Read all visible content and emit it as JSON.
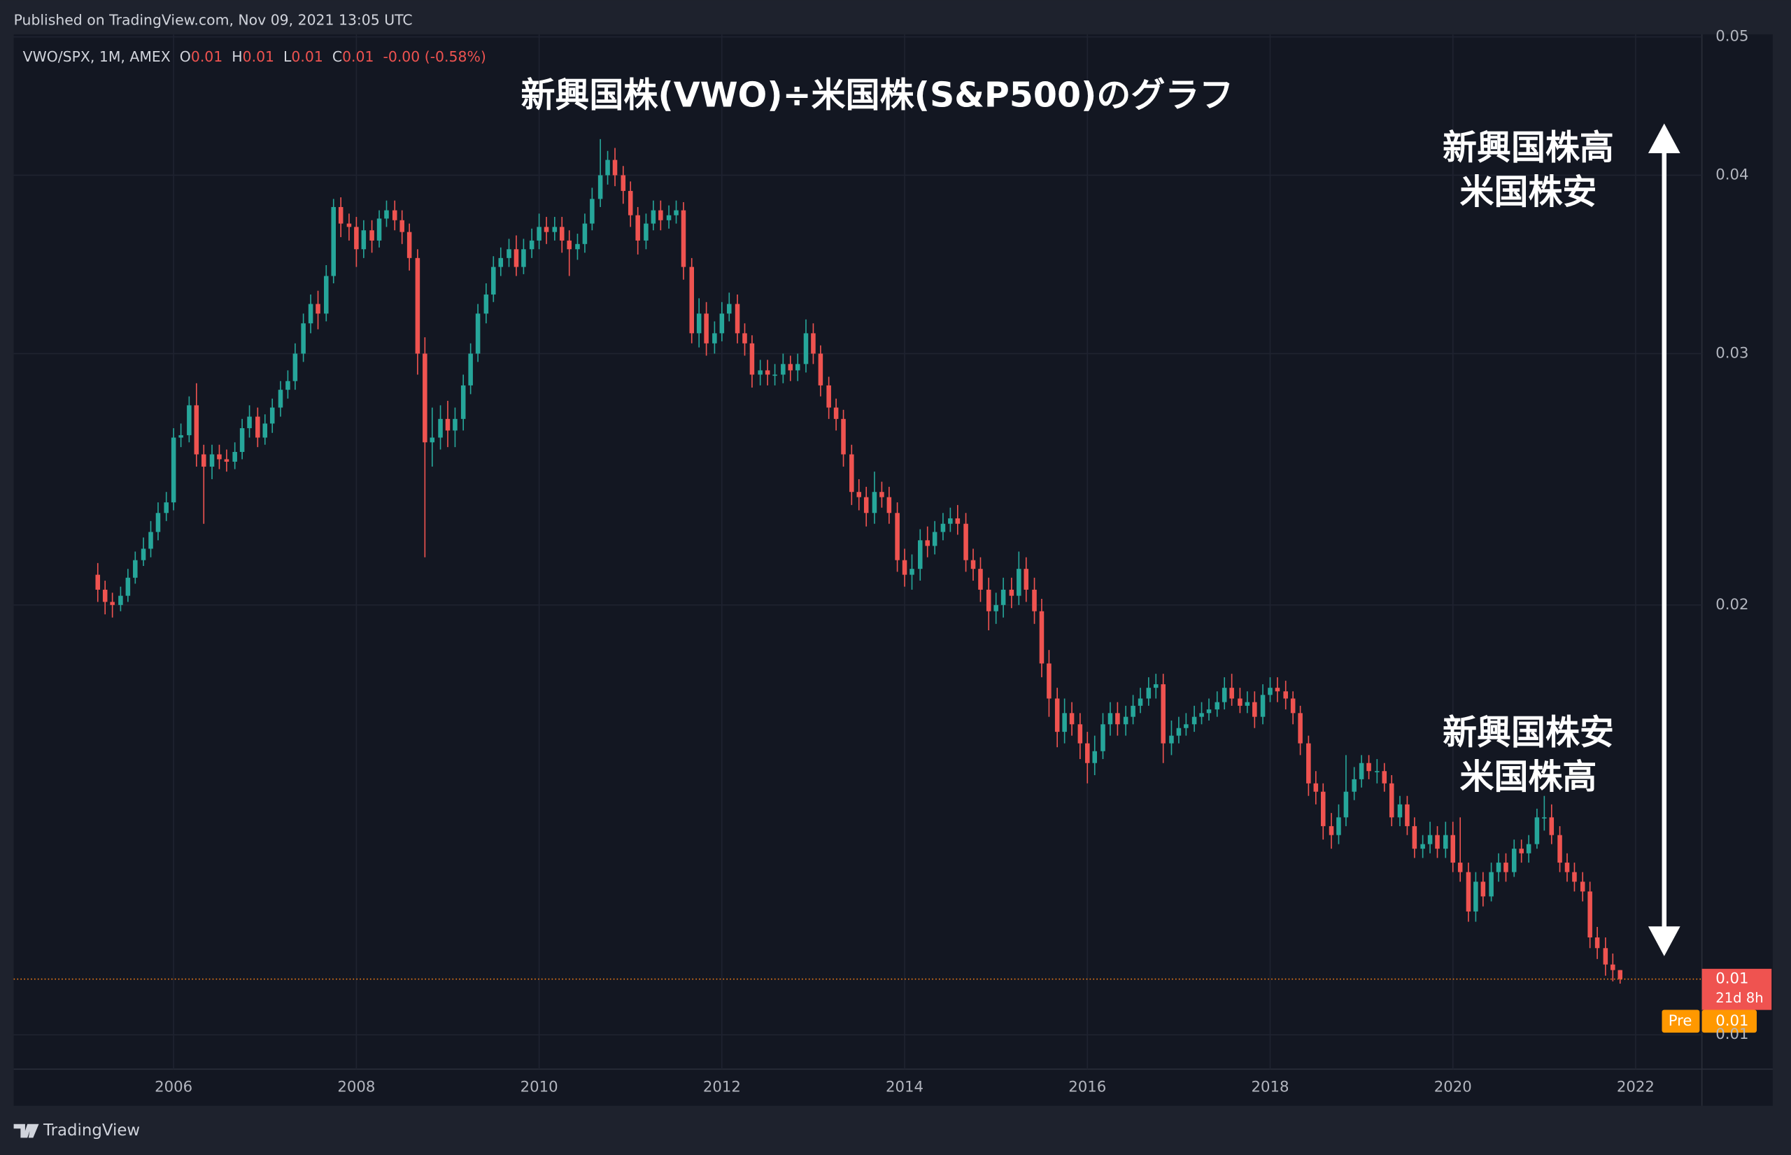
{
  "header": {
    "published": "Published on TradingView.com, Nov 09, 2021 13:05 UTC"
  },
  "footer": {
    "brand": "TradingView"
  },
  "chart_data": {
    "type": "candlestick",
    "title": "新興国株(VWO)÷米国株(S&P500)のグラフ",
    "legend": {
      "symbol": "VWO/SPX, 1M, AMEX",
      "items": [
        {
          "key": "O",
          "value": "0.01"
        },
        {
          "key": "H",
          "value": "0.01"
        },
        {
          "key": "L",
          "value": "0.01"
        },
        {
          "key": "C",
          "value": "0.01"
        }
      ],
      "change": "-0.00 (-0.58%)"
    },
    "annotations": [
      {
        "lines": [
          "新興国株高",
          "米国株安"
        ]
      },
      {
        "lines": [
          "新興国株安",
          "米国株高"
        ]
      }
    ],
    "price_labels": {
      "last": "0.01",
      "countdown": "21d 8h",
      "pre_tag": "Pre",
      "pre": "0.01"
    },
    "log_scale": true,
    "grid": true,
    "up_color": "#26a69a",
    "down_color": "#ef5350",
    "last_line_color": "#f57f17",
    "xlim": [
      2004.25,
      2022.725
    ],
    "xticks": [
      2006,
      2008,
      2010,
      2012,
      2014,
      2016,
      2018,
      2020,
      2022
    ],
    "ylim": [
      0.00946,
      0.0502
    ],
    "yticks": [
      0.05,
      0.04,
      0.03,
      0.02,
      0.01
    ],
    "x": [
      2005.17,
      2005.25,
      2005.33,
      2005.42,
      2005.5,
      2005.58,
      2005.67,
      2005.75,
      2005.83,
      2005.92,
      2006,
      2006.08,
      2006.17,
      2006.25,
      2006.33,
      2006.42,
      2006.5,
      2006.58,
      2006.67,
      2006.75,
      2006.83,
      2006.92,
      2007,
      2007.08,
      2007.17,
      2007.25,
      2007.33,
      2007.42,
      2007.5,
      2007.58,
      2007.67,
      2007.75,
      2007.83,
      2007.92,
      2008,
      2008.08,
      2008.17,
      2008.25,
      2008.33,
      2008.42,
      2008.5,
      2008.58,
      2008.67,
      2008.75,
      2008.83,
      2008.92,
      2009,
      2009.08,
      2009.17,
      2009.25,
      2009.33,
      2009.42,
      2009.5,
      2009.58,
      2009.67,
      2009.75,
      2009.83,
      2009.92,
      2010,
      2010.08,
      2010.17,
      2010.25,
      2010.33,
      2010.42,
      2010.5,
      2010.58,
      2010.67,
      2010.75,
      2010.83,
      2010.92,
      2011,
      2011.08,
      2011.17,
      2011.25,
      2011.33,
      2011.42,
      2011.5,
      2011.58,
      2011.67,
      2011.75,
      2011.83,
      2011.92,
      2012,
      2012.08,
      2012.17,
      2012.25,
      2012.33,
      2012.42,
      2012.5,
      2012.58,
      2012.67,
      2012.75,
      2012.83,
      2012.92,
      2013,
      2013.08,
      2013.17,
      2013.25,
      2013.33,
      2013.42,
      2013.5,
      2013.58,
      2013.67,
      2013.75,
      2013.83,
      2013.92,
      2014,
      2014.08,
      2014.17,
      2014.25,
      2014.33,
      2014.42,
      2014.5,
      2014.58,
      2014.67,
      2014.75,
      2014.83,
      2014.92,
      2015,
      2015.08,
      2015.17,
      2015.25,
      2015.33,
      2015.42,
      2015.5,
      2015.58,
      2015.67,
      2015.75,
      2015.83,
      2015.92,
      2016,
      2016.08,
      2016.17,
      2016.25,
      2016.33,
      2016.42,
      2016.5,
      2016.58,
      2016.67,
      2016.75,
      2016.83,
      2016.92,
      2017,
      2017.08,
      2017.17,
      2017.25,
      2017.33,
      2017.42,
      2017.5,
      2017.58,
      2017.67,
      2017.75,
      2017.83,
      2017.92,
      2018,
      2018.08,
      2018.17,
      2018.25,
      2018.33,
      2018.42,
      2018.5,
      2018.58,
      2018.67,
      2018.75,
      2018.83,
      2018.92,
      2019,
      2019.08,
      2019.17,
      2019.25,
      2019.33,
      2019.42,
      2019.5,
      2019.58,
      2019.67,
      2019.75,
      2019.83,
      2019.92,
      2020,
      2020.08,
      2020.17,
      2020.25,
      2020.33,
      2020.42,
      2020.5,
      2020.58,
      2020.67,
      2020.75,
      2020.83,
      2020.92,
      2021,
      2021.08,
      2021.17,
      2021.25,
      2021.33,
      2021.42,
      2021.5,
      2021.58,
      2021.67,
      2021.75,
      2021.83
    ],
    "open": [
      0.021,
      0.0205,
      0.0201,
      0.02,
      0.0203,
      0.0209,
      0.0215,
      0.0219,
      0.0225,
      0.0232,
      0.0236,
      0.0262,
      0.0263,
      0.0276,
      0.0255,
      0.025,
      0.0255,
      0.0253,
      0.0252,
      0.0256,
      0.0266,
      0.0271,
      0.0262,
      0.0268,
      0.0275,
      0.0283,
      0.0287,
      0.03,
      0.0315,
      0.0325,
      0.032,
      0.034,
      0.038,
      0.037,
      0.0368,
      0.0355,
      0.0366,
      0.036,
      0.0373,
      0.0378,
      0.0372,
      0.0365,
      0.035,
      0.03,
      0.026,
      0.0262,
      0.027,
      0.0265,
      0.027,
      0.0285,
      0.03,
      0.032,
      0.033,
      0.0345,
      0.035,
      0.0355,
      0.0345,
      0.0355,
      0.036,
      0.0368,
      0.0365,
      0.0368,
      0.036,
      0.0355,
      0.0358,
      0.037,
      0.0385,
      0.04,
      0.041,
      0.04,
      0.039,
      0.0375,
      0.036,
      0.037,
      0.0378,
      0.0372,
      0.0375,
      0.0378,
      0.0345,
      0.031,
      0.032,
      0.0305,
      0.031,
      0.032,
      0.0325,
      0.031,
      0.0305,
      0.029,
      0.0292,
      0.029,
      0.029,
      0.0295,
      0.0292,
      0.0295,
      0.031,
      0.03,
      0.0285,
      0.0275,
      0.027,
      0.0255,
      0.024,
      0.0238,
      0.0232,
      0.024,
      0.0238,
      0.0232,
      0.0215,
      0.021,
      0.0212,
      0.0222,
      0.022,
      0.0225,
      0.0228,
      0.023,
      0.0228,
      0.0215,
      0.0212,
      0.0205,
      0.0198,
      0.02,
      0.0205,
      0.0203,
      0.0212,
      0.0205,
      0.0198,
      0.0182,
      0.0172,
      0.0163,
      0.0168,
      0.0165,
      0.016,
      0.0155,
      0.0158,
      0.0165,
      0.0168,
      0.0165,
      0.0167,
      0.017,
      0.0172,
      0.0175,
      0.0176,
      0.016,
      0.0162,
      0.0164,
      0.0165,
      0.0167,
      0.0168,
      0.0169,
      0.0171,
      0.0175,
      0.0172,
      0.017,
      0.0171,
      0.0167,
      0.0173,
      0.0175,
      0.0174,
      0.0172,
      0.0168,
      0.016,
      0.015,
      0.0148,
      0.014,
      0.0138,
      0.0142,
      0.0148,
      0.0151,
      0.0155,
      0.0153,
      0.0153,
      0.015,
      0.0142,
      0.0145,
      0.014,
      0.0135,
      0.0136,
      0.0138,
      0.0135,
      0.0138,
      0.0132,
      0.013,
      0.0122,
      0.0128,
      0.0125,
      0.013,
      0.0132,
      0.013,
      0.0135,
      0.0134,
      0.0136,
      0.0142,
      0.0142,
      0.0138,
      0.0132,
      0.013,
      0.0128,
      0.0126,
      0.0117,
      0.0115,
      0.0112,
      0.0111
    ],
    "high": [
      0.0214,
      0.0208,
      0.0204,
      0.0206,
      0.0212,
      0.0218,
      0.0223,
      0.0229,
      0.0236,
      0.024,
      0.0266,
      0.0268,
      0.028,
      0.0286,
      0.0259,
      0.0259,
      0.0259,
      0.0257,
      0.026,
      0.027,
      0.0276,
      0.0275,
      0.0272,
      0.0279,
      0.0287,
      0.0292,
      0.0305,
      0.032,
      0.033,
      0.0332,
      0.0346,
      0.0385,
      0.0386,
      0.0376,
      0.0374,
      0.0372,
      0.0372,
      0.0378,
      0.0384,
      0.0384,
      0.0378,
      0.037,
      0.0355,
      0.0308,
      0.0275,
      0.0276,
      0.0278,
      0.0275,
      0.029,
      0.0305,
      0.0325,
      0.0336,
      0.0351,
      0.0356,
      0.0361,
      0.0363,
      0.0361,
      0.0367,
      0.0376,
      0.0374,
      0.0374,
      0.0374,
      0.0366,
      0.0364,
      0.0376,
      0.0392,
      0.0424,
      0.0416,
      0.0418,
      0.0406,
      0.0396,
      0.038,
      0.0376,
      0.0384,
      0.0384,
      0.0381,
      0.0384,
      0.0383,
      0.035,
      0.0328,
      0.0326,
      0.0316,
      0.0326,
      0.0331,
      0.033,
      0.0315,
      0.0309,
      0.0297,
      0.0297,
      0.0295,
      0.03,
      0.0299,
      0.03,
      0.0317,
      0.0315,
      0.0304,
      0.0289,
      0.0279,
      0.0274,
      0.0259,
      0.0245,
      0.0242,
      0.0248,
      0.0244,
      0.0242,
      0.0236,
      0.0219,
      0.0217,
      0.0226,
      0.0227,
      0.0229,
      0.0232,
      0.0234,
      0.0235,
      0.0232,
      0.0219,
      0.0216,
      0.0209,
      0.0204,
      0.0209,
      0.0209,
      0.0218,
      0.0216,
      0.0209,
      0.0202,
      0.0186,
      0.0175,
      0.0172,
      0.0171,
      0.0168,
      0.0163,
      0.0162,
      0.0168,
      0.0171,
      0.0171,
      0.017,
      0.0173,
      0.0175,
      0.0178,
      0.0179,
      0.0179,
      0.0166,
      0.0167,
      0.0168,
      0.017,
      0.0171,
      0.0172,
      0.0174,
      0.0178,
      0.0179,
      0.0175,
      0.0174,
      0.0174,
      0.0176,
      0.0178,
      0.0178,
      0.0177,
      0.0174,
      0.017,
      0.0162,
      0.0153,
      0.015,
      0.0143,
      0.0145,
      0.0157,
      0.0154,
      0.0157,
      0.0157,
      0.0156,
      0.0155,
      0.0152,
      0.0147,
      0.0147,
      0.0142,
      0.0138,
      0.0141,
      0.014,
      0.0141,
      0.0141,
      0.0142,
      0.0132,
      0.013,
      0.013,
      0.0132,
      0.0134,
      0.0134,
      0.0137,
      0.0137,
      0.0138,
      0.0144,
      0.0147,
      0.0145,
      0.014,
      0.0134,
      0.0132,
      0.013,
      0.0128,
      0.0119,
      0.0117,
      0.0114,
      0.0111
    ],
    "low": [
      0.0201,
      0.0197,
      0.0196,
      0.0198,
      0.0201,
      0.0207,
      0.0213,
      0.0216,
      0.0222,
      0.0229,
      0.0233,
      0.0258,
      0.026,
      0.025,
      0.0228,
      0.0245,
      0.0249,
      0.0248,
      0.0249,
      0.0253,
      0.0262,
      0.0258,
      0.0259,
      0.0264,
      0.0271,
      0.0279,
      0.0283,
      0.0296,
      0.031,
      0.0312,
      0.0316,
      0.0336,
      0.0362,
      0.036,
      0.0345,
      0.035,
      0.0353,
      0.0356,
      0.0368,
      0.0366,
      0.0358,
      0.0343,
      0.029,
      0.0216,
      0.025,
      0.0257,
      0.0258,
      0.0258,
      0.0265,
      0.0281,
      0.0296,
      0.0315,
      0.0326,
      0.034,
      0.0345,
      0.034,
      0.0341,
      0.035,
      0.0355,
      0.0358,
      0.036,
      0.0353,
      0.034,
      0.0349,
      0.0353,
      0.0366,
      0.038,
      0.0394,
      0.0393,
      0.0382,
      0.0368,
      0.0352,
      0.0355,
      0.0366,
      0.0366,
      0.0367,
      0.037,
      0.0338,
      0.0305,
      0.0303,
      0.0299,
      0.03,
      0.0306,
      0.0316,
      0.0305,
      0.0299,
      0.0284,
      0.0285,
      0.0285,
      0.0285,
      0.0286,
      0.0287,
      0.0287,
      0.0291,
      0.0295,
      0.028,
      0.027,
      0.0265,
      0.025,
      0.0235,
      0.0233,
      0.0227,
      0.0228,
      0.0234,
      0.0228,
      0.0211,
      0.0206,
      0.0205,
      0.0208,
      0.0216,
      0.0217,
      0.0222,
      0.0225,
      0.0224,
      0.0211,
      0.0208,
      0.0201,
      0.0192,
      0.0194,
      0.0196,
      0.0199,
      0.02,
      0.0201,
      0.0194,
      0.0178,
      0.0167,
      0.0159,
      0.016,
      0.0162,
      0.0156,
      0.015,
      0.0152,
      0.0156,
      0.0162,
      0.0162,
      0.0162,
      0.0165,
      0.0168,
      0.017,
      0.0172,
      0.0155,
      0.0157,
      0.016,
      0.0162,
      0.0163,
      0.0165,
      0.0166,
      0.0167,
      0.0169,
      0.017,
      0.0168,
      0.0168,
      0.0164,
      0.0165,
      0.0171,
      0.0171,
      0.0169,
      0.0165,
      0.0157,
      0.0147,
      0.0145,
      0.0137,
      0.0135,
      0.0136,
      0.014,
      0.0146,
      0.0149,
      0.0151,
      0.015,
      0.0148,
      0.014,
      0.014,
      0.0138,
      0.0133,
      0.0133,
      0.0134,
      0.0133,
      0.0133,
      0.013,
      0.0128,
      0.012,
      0.012,
      0.0123,
      0.0124,
      0.0128,
      0.0128,
      0.0129,
      0.0132,
      0.0132,
      0.0135,
      0.0139,
      0.0136,
      0.013,
      0.0128,
      0.0126,
      0.0124,
      0.0115,
      0.0113,
      0.011,
      0.0109,
      0.01086
    ],
    "close": [
      0.0205,
      0.0201,
      0.02,
      0.0203,
      0.0209,
      0.0215,
      0.0219,
      0.0225,
      0.0232,
      0.0236,
      0.0262,
      0.0263,
      0.0276,
      0.0255,
      0.025,
      0.0255,
      0.0253,
      0.0252,
      0.0256,
      0.0266,
      0.0271,
      0.0262,
      0.0268,
      0.0275,
      0.0283,
      0.0287,
      0.03,
      0.0315,
      0.0325,
      0.032,
      0.034,
      0.038,
      0.037,
      0.0368,
      0.0355,
      0.0366,
      0.036,
      0.0373,
      0.0378,
      0.0372,
      0.0365,
      0.035,
      0.03,
      0.026,
      0.0262,
      0.027,
      0.0265,
      0.027,
      0.0285,
      0.03,
      0.032,
      0.033,
      0.0345,
      0.035,
      0.0355,
      0.0345,
      0.0355,
      0.036,
      0.0368,
      0.0365,
      0.0368,
      0.036,
      0.0355,
      0.0358,
      0.037,
      0.0385,
      0.04,
      0.041,
      0.04,
      0.039,
      0.0375,
      0.036,
      0.037,
      0.0378,
      0.0372,
      0.0375,
      0.0378,
      0.0345,
      0.031,
      0.032,
      0.0305,
      0.031,
      0.032,
      0.0325,
      0.031,
      0.0305,
      0.029,
      0.0292,
      0.029,
      0.029,
      0.0295,
      0.0292,
      0.0295,
      0.031,
      0.03,
      0.0285,
      0.0275,
      0.027,
      0.0255,
      0.024,
      0.0238,
      0.0232,
      0.024,
      0.0238,
      0.0232,
      0.0215,
      0.021,
      0.0212,
      0.0222,
      0.022,
      0.0225,
      0.0228,
      0.023,
      0.0228,
      0.0215,
      0.0212,
      0.0205,
      0.0198,
      0.02,
      0.0205,
      0.0203,
      0.0212,
      0.0205,
      0.0198,
      0.0182,
      0.0172,
      0.0163,
      0.0168,
      0.0165,
      0.016,
      0.0155,
      0.0158,
      0.0165,
      0.0168,
      0.0165,
      0.0167,
      0.017,
      0.0172,
      0.0175,
      0.0176,
      0.016,
      0.0162,
      0.0164,
      0.0165,
      0.0167,
      0.0168,
      0.0169,
      0.0171,
      0.0175,
      0.0172,
      0.017,
      0.0171,
      0.0167,
      0.0173,
      0.0175,
      0.0174,
      0.0172,
      0.0168,
      0.016,
      0.015,
      0.0148,
      0.014,
      0.0138,
      0.0142,
      0.0148,
      0.0151,
      0.0155,
      0.0153,
      0.0153,
      0.015,
      0.0142,
      0.0145,
      0.014,
      0.0135,
      0.0136,
      0.0138,
      0.0135,
      0.0138,
      0.0132,
      0.013,
      0.0122,
      0.0128,
      0.0125,
      0.013,
      0.0132,
      0.013,
      0.0135,
      0.0134,
      0.0136,
      0.0142,
      0.0142,
      0.0138,
      0.0132,
      0.013,
      0.0128,
      0.0126,
      0.0117,
      0.0115,
      0.0112,
      0.0111,
      0.01094
    ]
  }
}
